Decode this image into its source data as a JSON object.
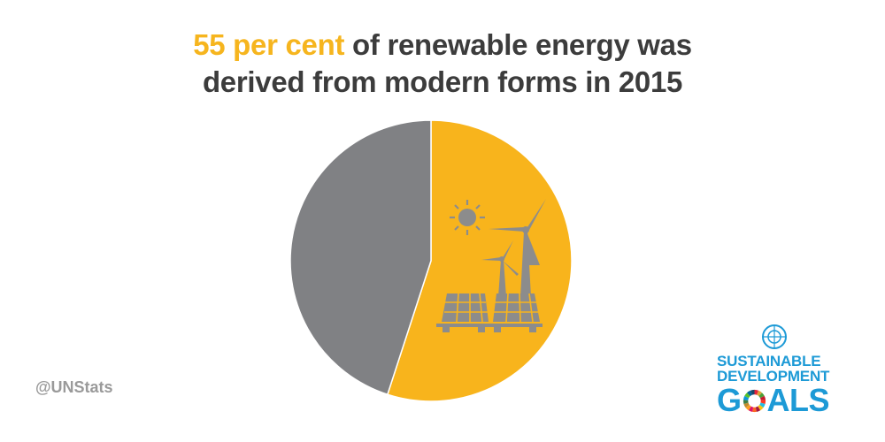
{
  "title": {
    "highlight": "55 per cent",
    "line1_rest": " of renewable energy was",
    "line2": "derived from modern forms in 2015"
  },
  "chart_data": {
    "type": "pie",
    "title": "55 per cent of renewable energy was derived from modern forms in 2015",
    "slices": [
      {
        "name": "",
        "value": 55,
        "color": "#f8b41c",
        "icon": "solar-wind-icon"
      },
      {
        "name": "",
        "value": 45,
        "color": "#808184"
      }
    ]
  },
  "footer": {
    "handle": "@UNStats"
  },
  "logo": {
    "line1": "SUSTAINABLE",
    "line2": "DEVELOPMENT",
    "line3": "GOALS",
    "emblem_icon": "un-emblem-icon",
    "wheel_colors": [
      "#e5243b",
      "#dda63a",
      "#4c9f38",
      "#c5192d",
      "#ff3a21",
      "#26bde2",
      "#fcc30b",
      "#a21942",
      "#fd6925",
      "#dd1367",
      "#fd9d24",
      "#bf8b2e",
      "#3f7e44",
      "#0a97d9",
      "#56c02b",
      "#00689d",
      "#19486a"
    ]
  }
}
